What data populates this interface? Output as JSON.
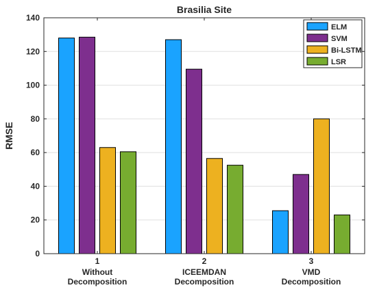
{
  "chart_data": {
    "type": "bar",
    "title": "Brasilia Site",
    "xlabel": "",
    "ylabel": "RMSE",
    "ylim": [
      0,
      140
    ],
    "yticks": [
      0,
      20,
      40,
      60,
      80,
      100,
      120,
      140
    ],
    "grid": true,
    "legend_position": "top-right",
    "categories": [
      {
        "tick": "1",
        "lines": [
          "Without",
          "Decomposition"
        ]
      },
      {
        "tick": "2",
        "lines": [
          "ICEEMDAN",
          "Decomposition"
        ]
      },
      {
        "tick": "3",
        "lines": [
          "VMD",
          "Decomposition"
        ]
      }
    ],
    "series": [
      {
        "name": "ELM",
        "color": "#1aa3ff",
        "values": [
          128,
          127,
          25.5
        ]
      },
      {
        "name": "SVM",
        "color": "#7e2f8e",
        "values": [
          128.5,
          109.5,
          47
        ]
      },
      {
        "name": "Bi-LSTM",
        "color": "#edb120",
        "values": [
          63,
          56.5,
          80
        ]
      },
      {
        "name": "LSR",
        "color": "#77ac30",
        "values": [
          60.5,
          52.5,
          23
        ]
      }
    ]
  }
}
